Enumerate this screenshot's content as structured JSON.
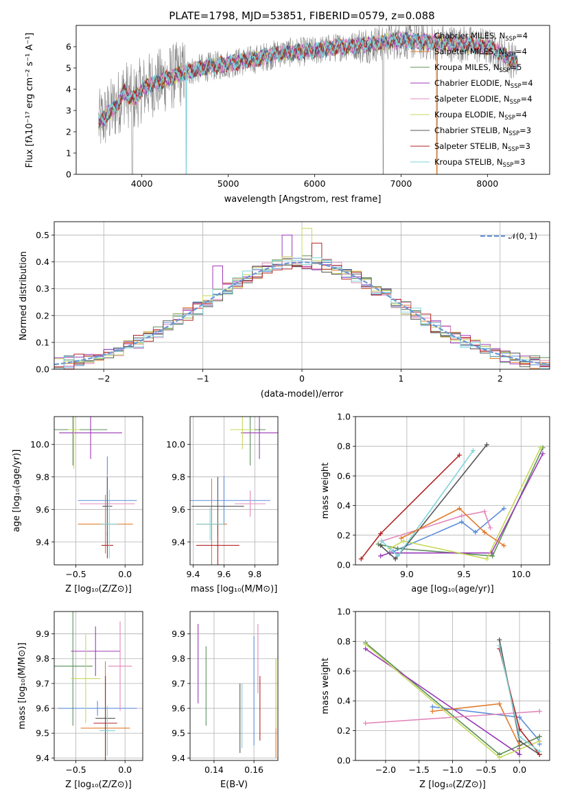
{
  "colors": [
    "#5b8dd9",
    "#e07b2a",
    "#5a8f5a",
    "#9b38b8",
    "#e287bb",
    "#c7d85a",
    "#555555",
    "#b22222",
    "#7fd3d8"
  ],
  "legend_labels": [
    {
      "base": "Chabrier MILES, N",
      "sub": "SSP",
      "tail": "=4"
    },
    {
      "base": "Salpeter MILES, N",
      "sub": "SSP",
      "tail": "=4"
    },
    {
      "base": "Kroupa MILES, N",
      "sub": "SSP",
      "tail": "=5"
    },
    {
      "base": "Chabrier ELODIE, N",
      "sub": "SSP",
      "tail": "=4"
    },
    {
      "base": "Salpeter ELODIE, N",
      "sub": "SSP",
      "tail": "=4"
    },
    {
      "base": "Kroupa ELODIE, N",
      "sub": "SSP",
      "tail": "=4"
    },
    {
      "base": "Chabrier STELIB, N",
      "sub": "SSP",
      "tail": "=3"
    },
    {
      "base": "Salpeter STELIB, N",
      "sub": "SSP",
      "tail": "=3"
    },
    {
      "base": "Kroupa STELIB, N",
      "sub": "SSP",
      "tail": "=3"
    }
  ],
  "chart_data": [
    {
      "id": "spectrum",
      "type": "line",
      "title": "PLATE=1798, MJD=53851, FIBERID=0579, z=0.088",
      "xlabel": "wavelength [Angstrom, rest frame]",
      "ylabel": "Flux [fλ10⁻¹⁷ erg cm⁻² s⁻¹ A⁻¹]",
      "xlim": [
        3240,
        8720
      ],
      "ylim": [
        0,
        7
      ],
      "xticks": [
        "4000",
        "5000",
        "6000",
        "7000",
        "8000"
      ],
      "yticks": [
        "0",
        "1",
        "2",
        "3",
        "4",
        "5",
        "6"
      ],
      "data_color": "#808080",
      "continuum": [
        [
          3500,
          2.4
        ],
        [
          3700,
          3.2
        ],
        [
          3800,
          3.9
        ],
        [
          3900,
          3.5
        ],
        [
          4000,
          4.0
        ],
        [
          4100,
          4.2
        ],
        [
          4300,
          4.5
        ],
        [
          4500,
          4.8
        ],
        [
          4700,
          5.0
        ],
        [
          5000,
          5.2
        ],
        [
          5300,
          5.4
        ],
        [
          5600,
          5.7
        ],
        [
          6000,
          5.8
        ],
        [
          6300,
          6.0
        ],
        [
          6600,
          6.1
        ],
        [
          7000,
          6.3
        ],
        [
          7400,
          6.2
        ],
        [
          7800,
          6.1
        ],
        [
          8000,
          6.0
        ],
        [
          8200,
          5.6
        ],
        [
          8350,
          5.2
        ]
      ]
    },
    {
      "id": "residuals",
      "type": "histogram",
      "xlabel": "(data-model)/error",
      "ylabel": "Normed distribution",
      "xlim": [
        -2.5,
        2.5
      ],
      "ylim": [
        0,
        0.55
      ],
      "xticks": [
        "−2",
        "−1",
        "0",
        "1",
        "2"
      ],
      "yticks": [
        "0.0",
        "0.1",
        "0.2",
        "0.3",
        "0.4",
        "0.5"
      ],
      "legend": "𝒩(0, 1)",
      "gaussian_color": "#6a96d8"
    },
    {
      "id": "age-vs-Z",
      "type": "scatter",
      "xlabel": "Z [log₁₀(Z/Z⊙)]",
      "ylabel": "age  [log₁₀(age/yr)]",
      "xlim": [
        -0.72,
        0.18
      ],
      "ylim": [
        9.26,
        10.17
      ],
      "xticks": [
        {
          "v": -0.5,
          "t": "−0.5"
        },
        {
          "v": 0.0,
          "t": "0.0"
        }
      ],
      "yticks": [
        {
          "v": 9.4,
          "t": "9.4"
        },
        {
          "v": 9.6,
          "t": "9.6"
        },
        {
          "v": 9.8,
          "t": "9.8"
        },
        {
          "v": 10.0,
          "t": "10.0"
        }
      ],
      "points": [
        {
          "c": 0,
          "x": -0.18,
          "y": 9.655,
          "xe": 0.3,
          "ye": 0.27
        },
        {
          "c": 1,
          "x": -0.2,
          "y": 9.51,
          "xe": 0.28,
          "ye": 0.18
        },
        {
          "c": 2,
          "x": -0.53,
          "y": 10.09,
          "xe": 0.35,
          "ye": 0.22
        },
        {
          "c": 3,
          "x": -0.35,
          "y": 10.07,
          "xe": 0.32,
          "ye": 0.16
        },
        {
          "c": 4,
          "x": -0.18,
          "y": 9.635,
          "xe": 0.28,
          "ye": 0.18
        },
        {
          "c": 5,
          "x": -0.52,
          "y": 10.09,
          "xe": 0.06,
          "ye": 0.24
        },
        {
          "c": 6,
          "x": -0.18,
          "y": 9.62,
          "xe": 0.05,
          "ye": 0.18
        },
        {
          "c": 7,
          "x": -0.18,
          "y": 9.38,
          "xe": 0.06,
          "ye": 0.08
        },
        {
          "c": 8,
          "x": -0.16,
          "y": 9.51,
          "xe": 0.09,
          "ye": 0.21
        }
      ]
    },
    {
      "id": "age-vs-mass",
      "type": "scatter",
      "xlabel": "mass [log₁₀(M/M⊙)]",
      "ylabel": "",
      "xlim": [
        9.38,
        9.95
      ],
      "ylim": [
        9.26,
        10.17
      ],
      "xticks": [
        {
          "v": 9.4,
          "t": "9.4"
        },
        {
          "v": 9.6,
          "t": "9.6"
        },
        {
          "v": 9.8,
          "t": "9.8"
        }
      ],
      "yticks": [
        {
          "v": 9.4,
          "t": "9.4"
        },
        {
          "v": 9.6,
          "t": "9.6"
        },
        {
          "v": 9.8,
          "t": "9.8"
        },
        {
          "v": 10.0,
          "t": "10.0"
        }
      ],
      "points": [
        {
          "c": 0,
          "x": 9.6,
          "y": 9.655,
          "xe": 0.3,
          "ye": 0.15
        },
        {
          "c": 1,
          "x": 9.52,
          "y": 9.51,
          "xe": 0.1,
          "ye": 0.28
        },
        {
          "c": 2,
          "x": 9.77,
          "y": 10.09,
          "xe": 0.1,
          "ye": 0.22
        },
        {
          "c": 3,
          "x": 9.83,
          "y": 10.07,
          "xe": 0.12,
          "ye": 0.16
        },
        {
          "c": 4,
          "x": 9.77,
          "y": 9.635,
          "xe": 0.1,
          "ye": 0.08
        },
        {
          "c": 5,
          "x": 9.72,
          "y": 10.09,
          "xe": 0.08,
          "ye": 0.12
        },
        {
          "c": 6,
          "x": 9.56,
          "y": 9.62,
          "xe": 0.17,
          "ye": 0.18
        },
        {
          "c": 7,
          "x": 9.56,
          "y": 9.38,
          "xe": 0.14,
          "ye": 0.13
        },
        {
          "c": 8,
          "x": 9.51,
          "y": 9.51,
          "xe": 0.09,
          "ye": 0.1
        }
      ]
    },
    {
      "id": "weight-vs-age",
      "type": "line",
      "xlabel": "age  [log₁₀(age/yr)]",
      "ylabel": "mass weight",
      "xlim": [
        8.55,
        10.25
      ],
      "ylim": [
        0,
        1.0
      ],
      "xticks": [
        {
          "v": 9.0,
          "t": "9.0"
        },
        {
          "v": 9.5,
          "t": "9.5"
        },
        {
          "v": 10.0,
          "t": "10.0"
        }
      ],
      "yticks": [
        {
          "v": 0,
          "t": "0.0"
        },
        {
          "v": 0.2,
          "t": "0.2"
        },
        {
          "v": 0.4,
          "t": "0.4"
        },
        {
          "v": 0.6,
          "t": "0.6"
        },
        {
          "v": 0.8,
          "t": "0.8"
        },
        {
          "v": 1.0,
          "t": "1.0"
        }
      ],
      "series": [
        {
          "c": 0,
          "x": [
            8.88,
            9.48,
            9.6,
            9.85
          ],
          "y": [
            0.09,
            0.29,
            0.22,
            0.38
          ]
        },
        {
          "c": 1,
          "x": 8.95,
          "y": 0
        },
        {
          "c": 2,
          "x": [
            8.75,
            8.92,
            9.75,
            10.19
          ],
          "y": [
            0.14,
            0.11,
            0.06,
            0.79
          ]
        },
        {
          "c": 3,
          "x": [
            8.77,
            8.85,
            9.74,
            10.19
          ],
          "y": [
            0.06,
            0.08,
            0.08,
            0.75
          ]
        },
        {
          "c": 4,
          "x": [
            8.78,
            9.48,
            9.68,
            9.73
          ],
          "y": [
            0.16,
            0.33,
            0.36,
            0.25
          ]
        },
        {
          "c": 5,
          "x": [
            8.85,
            8.97,
            9.7,
            10.17
          ],
          "y": [
            0.11,
            0.16,
            0.04,
            0.79
          ]
        },
        {
          "c": 6,
          "x": [
            8.77,
            8.9,
            9.7
          ],
          "y": [
            0.13,
            0.04,
            0.81
          ]
        },
        {
          "c": 7,
          "x": [
            8.6,
            8.77,
            9.46
          ],
          "y": [
            0.04,
            0.21,
            0.74
          ]
        },
        {
          "c": 8,
          "x": [
            8.78,
            8.92,
            9.58
          ],
          "y": [
            0.16,
            0.06,
            0.77
          ]
        }
      ],
      "orange": {
        "x": [
          8.95,
          9.46,
          9.68,
          9.85
        ],
        "y": [
          0.18,
          0.38,
          0.22,
          0.13
        ]
      }
    },
    {
      "id": "mass-vs-Z",
      "type": "scatter",
      "xlabel": "Z [log₁₀(Z/Z⊙)]",
      "ylabel": "mass [log₁₀(M/M⊙)]",
      "xlim": [
        -0.72,
        0.18
      ],
      "ylim": [
        9.39,
        9.99
      ],
      "xticks": [
        {
          "v": -0.5,
          "t": "−0.5"
        },
        {
          "v": 0.0,
          "t": "0.0"
        }
      ],
      "yticks": [
        {
          "v": 9.4,
          "t": "9.4"
        },
        {
          "v": 9.5,
          "t": "9.5"
        },
        {
          "v": 9.6,
          "t": "9.6"
        },
        {
          "v": 9.7,
          "t": "9.7"
        },
        {
          "v": 9.8,
          "t": "9.8"
        },
        {
          "v": 9.9,
          "t": "9.9"
        }
      ],
      "points": [
        {
          "c": 0,
          "x": -0.28,
          "y": 9.6,
          "xe": 0.4,
          "ye": 0.03
        },
        {
          "c": 1,
          "x": -0.2,
          "y": 9.52,
          "xe": 0.25,
          "ye": 0.27
        },
        {
          "c": 2,
          "x": -0.53,
          "y": 9.77,
          "xe": 0.2,
          "ye": 0.24
        },
        {
          "c": 3,
          "x": -0.3,
          "y": 9.83,
          "xe": 0.25,
          "ye": 0.1
        },
        {
          "c": 4,
          "x": -0.05,
          "y": 9.77,
          "xe": 0.12,
          "ye": 0.18
        },
        {
          "c": 5,
          "x": -0.4,
          "y": 9.72,
          "xe": 0.15,
          "ye": 0.18
        },
        {
          "c": 6,
          "x": -0.2,
          "y": 9.56,
          "xe": 0.1,
          "ye": 0.17
        },
        {
          "c": 7,
          "x": -0.2,
          "y": 9.54,
          "xe": 0.12,
          "ye": 0.19
        },
        {
          "c": 8,
          "x": -0.18,
          "y": 9.51,
          "xe": 0.08,
          "ye": 0.1
        }
      ]
    },
    {
      "id": "mass-vs-EBV",
      "type": "scatter",
      "xlabel": "E(B-V)",
      "ylabel": "",
      "xlim": [
        0.128,
        0.172
      ],
      "ylim": [
        9.39,
        9.99
      ],
      "xticks": [
        {
          "v": 0.14,
          "t": "0.14"
        },
        {
          "v": 0.16,
          "t": "0.16"
        }
      ],
      "yticks": [
        {
          "v": 9.4,
          "t": "9.4"
        },
        {
          "v": 9.5,
          "t": "9.5"
        },
        {
          "v": 9.6,
          "t": "9.6"
        },
        {
          "v": 9.7,
          "t": "9.7"
        },
        {
          "v": 9.8,
          "t": "9.8"
        },
        {
          "v": 9.9,
          "t": "9.9"
        }
      ],
      "points": [
        {
          "c": 0,
          "x": 0.16,
          "y": 9.67,
          "xe": 0,
          "ye": 0.22
        },
        {
          "c": 1,
          "x": 0.171,
          "y": 9.6,
          "xe": 0,
          "ye": 0.2
        },
        {
          "c": 2,
          "x": 0.136,
          "y": 9.69,
          "xe": 0,
          "ye": 0.16
        },
        {
          "c": 3,
          "x": 0.132,
          "y": 9.78,
          "xe": 0,
          "ye": 0.16
        },
        {
          "c": 4,
          "x": 0.162,
          "y": 9.8,
          "xe": 0,
          "ye": 0.14
        },
        {
          "c": 5,
          "x": 0.171,
          "y": 9.66,
          "xe": 0,
          "ye": 0.14
        },
        {
          "c": 6,
          "x": 0.153,
          "y": 9.56,
          "xe": 0,
          "ye": 0.14
        },
        {
          "c": 7,
          "x": 0.163,
          "y": 9.6,
          "xe": 0,
          "ye": 0.13
        },
        {
          "c": 8,
          "x": 0.154,
          "y": 9.57,
          "xe": 0,
          "ye": 0.13
        }
      ]
    },
    {
      "id": "weight-vs-Z",
      "type": "line",
      "xlabel": "Z [log₁₀(Z/Z⊙)]",
      "ylabel": "mass weight",
      "xlim": [
        -2.45,
        0.45
      ],
      "ylim": [
        0,
        1.0
      ],
      "xticks": [
        {
          "v": -2.0,
          "t": "−2.0"
        },
        {
          "v": -1.5,
          "t": "−1.5"
        },
        {
          "v": -1.0,
          "t": "−1.0"
        },
        {
          "v": -0.5,
          "t": "−0.5"
        },
        {
          "v": 0.0,
          "t": "0.0"
        }
      ],
      "yticks": [
        {
          "v": 0,
          "t": "0.0"
        },
        {
          "v": 0.2,
          "t": "0.2"
        },
        {
          "v": 0.4,
          "t": "0.4"
        },
        {
          "v": 0.6,
          "t": "0.6"
        },
        {
          "v": 0.8,
          "t": "0.8"
        },
        {
          "v": 1.0,
          "t": "1.0"
        }
      ],
      "series": [
        {
          "c": 0,
          "x": [
            -1.3,
            0.0,
            0.3,
            0.3
          ],
          "y": [
            0.36,
            0.29,
            0.13,
            0.11
          ]
        },
        {
          "c": 1,
          "x": [
            -1.3,
            -0.3,
            0.0,
            0.3
          ],
          "y": [
            0.33,
            0.38,
            0.1,
            0.16
          ]
        },
        {
          "c": 2,
          "x": [
            -2.3,
            -0.3,
            0.3
          ],
          "y": [
            0.79,
            0.04,
            0.16
          ]
        },
        {
          "c": 3,
          "x": [
            -2.3,
            0.0,
            0.0
          ],
          "y": [
            0.75,
            0.04,
            0.08
          ]
        },
        {
          "c": 4,
          "x": [
            -2.3,
            0.3
          ],
          "y": [
            0.25,
            0.33
          ]
        },
        {
          "c": 5,
          "x": [
            -2.3,
            -0.3,
            0.3
          ],
          "y": [
            0.78,
            0.02,
            0.13
          ]
        },
        {
          "c": 6,
          "x": [
            -0.3,
            0.0,
            0.3
          ],
          "y": [
            0.81,
            0.13,
            0.04
          ]
        },
        {
          "c": 7,
          "x": [
            -0.3,
            0.0,
            0.3
          ],
          "y": [
            0.75,
            0.21,
            0.04
          ]
        },
        {
          "c": 8,
          "x": [
            -0.3,
            0.0,
            0.3
          ],
          "y": [
            0.77,
            0.16,
            0.06
          ]
        }
      ]
    }
  ]
}
